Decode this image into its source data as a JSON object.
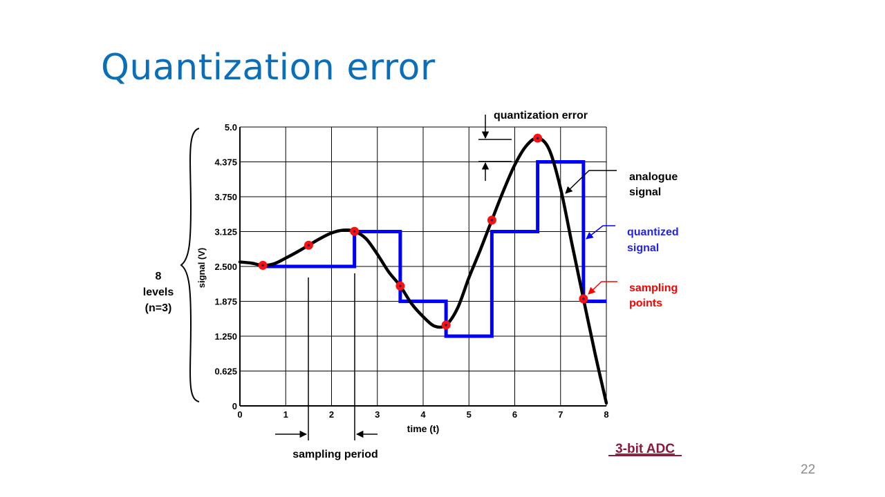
{
  "slide": {
    "title": "Quantization error",
    "page_number": "22"
  },
  "colors": {
    "title": "#0a6fb8",
    "analogue": "#000000",
    "quantized": "#0000ff",
    "sampling": "#ff0000",
    "adc_label": "#8b1a3a",
    "grid": "#000000"
  },
  "chart_data": {
    "type": "line",
    "title": "",
    "xlabel": "time (t)",
    "ylabel": "signal (V)",
    "xlim": [
      0,
      8
    ],
    "ylim": [
      0,
      5.0
    ],
    "x_ticks": [
      0,
      1,
      2,
      3,
      4,
      5,
      6,
      7,
      8
    ],
    "x_tick_labels": [
      "0",
      "1",
      "2",
      "3",
      "4",
      "5",
      "6",
      "7",
      "8"
    ],
    "y_ticks": [
      0,
      0.625,
      1.25,
      1.875,
      2.5,
      3.125,
      3.75,
      4.375,
      5.0
    ],
    "y_tick_labels": [
      "0",
      "0.625",
      "1.250",
      "1.875",
      "2.500",
      "3.125",
      "3.750",
      "4.375",
      "5.0"
    ],
    "grid": true,
    "analogue_signal": {
      "x": [
        0,
        0.25,
        0.5,
        0.75,
        1,
        1.25,
        1.5,
        1.75,
        2,
        2.25,
        2.5,
        2.75,
        3,
        3.25,
        3.5,
        3.75,
        4,
        4.25,
        4.5,
        4.75,
        5,
        5.25,
        5.5,
        5.75,
        6,
        6.25,
        6.5,
        6.75,
        7,
        7.25,
        7.5,
        7.75,
        8
      ],
      "y": [
        2.58,
        2.56,
        2.52,
        2.55,
        2.65,
        2.76,
        2.88,
        3.0,
        3.1,
        3.15,
        3.13,
        3.0,
        2.72,
        2.4,
        2.15,
        1.83,
        1.6,
        1.43,
        1.45,
        1.75,
        2.3,
        2.8,
        3.33,
        3.85,
        4.32,
        4.66,
        4.8,
        4.6,
        3.9,
        2.9,
        1.92,
        0.95,
        0.05
      ]
    },
    "sampling_points": {
      "x": [
        0.5,
        1.5,
        2.5,
        3.5,
        4.5,
        5.5,
        6.5,
        7.5
      ],
      "y": [
        2.52,
        2.88,
        3.13,
        2.15,
        1.45,
        3.33,
        4.8,
        1.92
      ]
    },
    "quantized_signal": {
      "x": [
        0.5,
        2.5,
        2.5,
        3.5,
        3.5,
        4.5,
        4.5,
        5.5,
        5.5,
        6.5,
        6.5,
        7.5,
        7.5,
        8.0
      ],
      "y": [
        2.5,
        2.5,
        3.125,
        3.125,
        1.875,
        1.875,
        1.25,
        1.25,
        3.125,
        3.125,
        4.375,
        4.375,
        1.875,
        1.875
      ]
    },
    "levels_label": [
      "8",
      "levels",
      "(n=3)"
    ],
    "annotations": {
      "quantization_error": "quantization error",
      "analogue_signal": [
        "analogue",
        "signal"
      ],
      "quantized_signal": [
        "quantized",
        "signal"
      ],
      "sampling_points": [
        "sampling",
        "points"
      ],
      "sampling_period": "sampling period",
      "adc": "3-bit ADC"
    }
  }
}
